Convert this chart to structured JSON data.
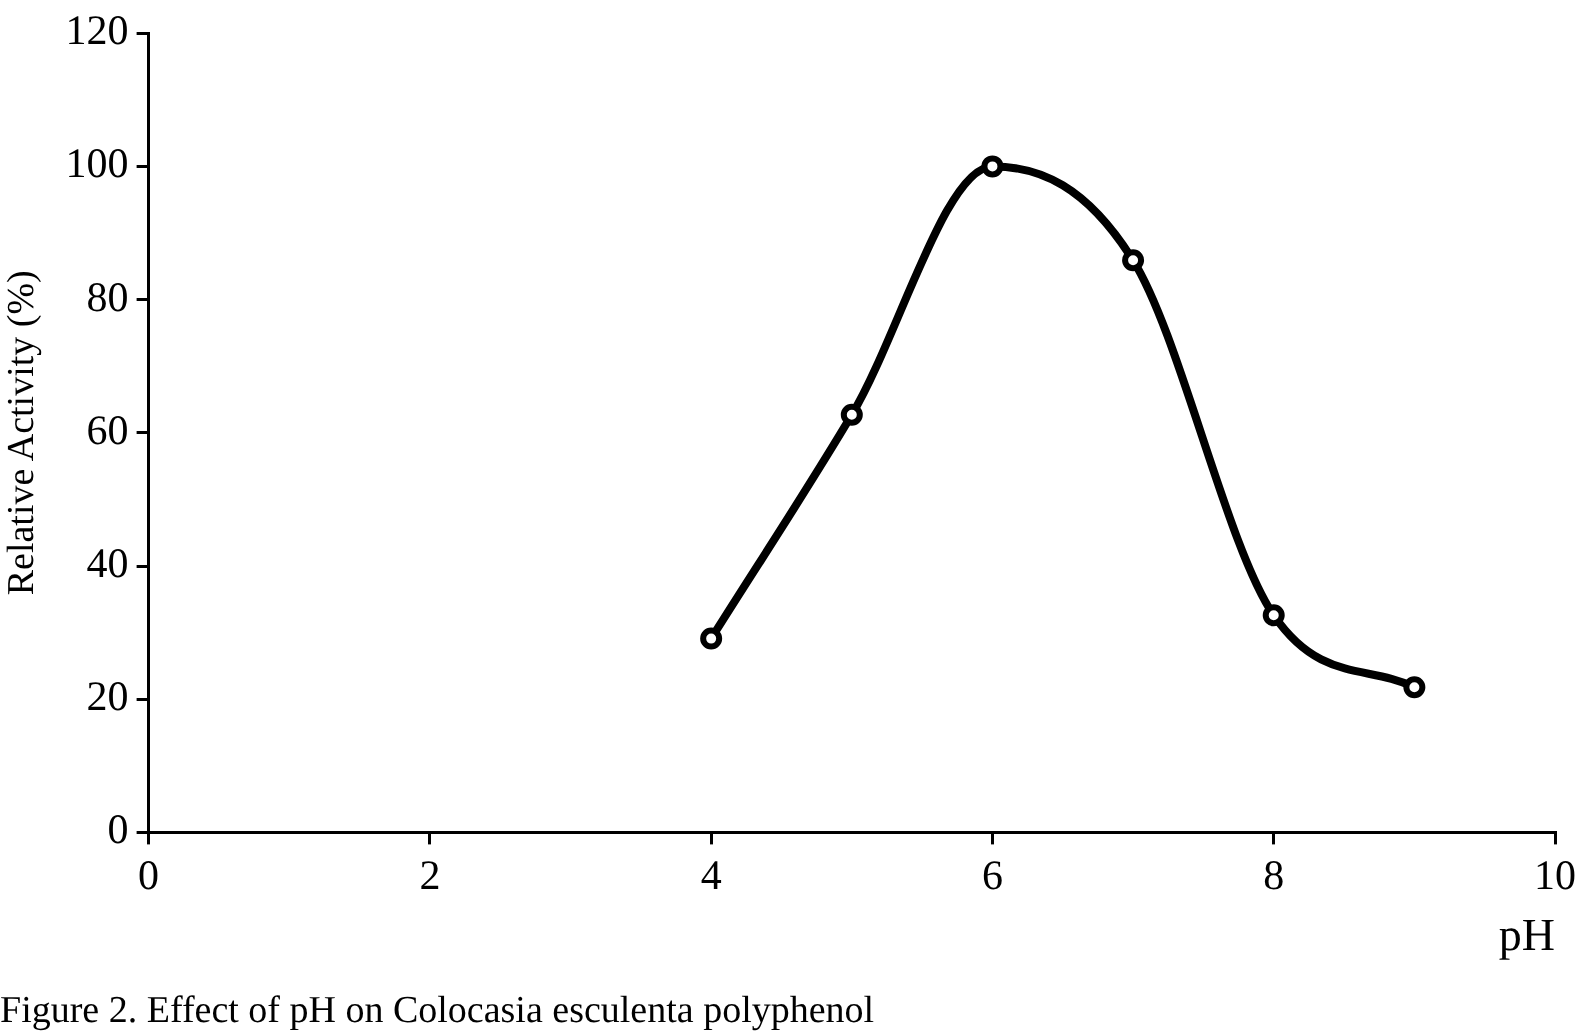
{
  "chart_data": {
    "type": "line",
    "xlabel": "pH",
    "ylabel": "Relative Activity (%)",
    "x": [
      4,
      5,
      6,
      7,
      8,
      9
    ],
    "series": [
      {
        "color": "#000000",
        "values": [
          29.1,
          62.7,
          100,
          85.9,
          32.6,
          21.8
        ]
      }
    ],
    "xlim": [
      0,
      10
    ],
    "xticks": [
      0,
      2,
      4,
      6,
      8,
      10
    ],
    "ylim": [
      0,
      120
    ],
    "yticks": [
      0,
      20,
      40,
      60,
      80,
      100,
      120
    ],
    "grid": false,
    "legend": false,
    "marker": "circle",
    "line_style": "solid",
    "annotations": [
      "Figure 2. Effect of pH on Colocasia esculenta polyphenol"
    ]
  }
}
